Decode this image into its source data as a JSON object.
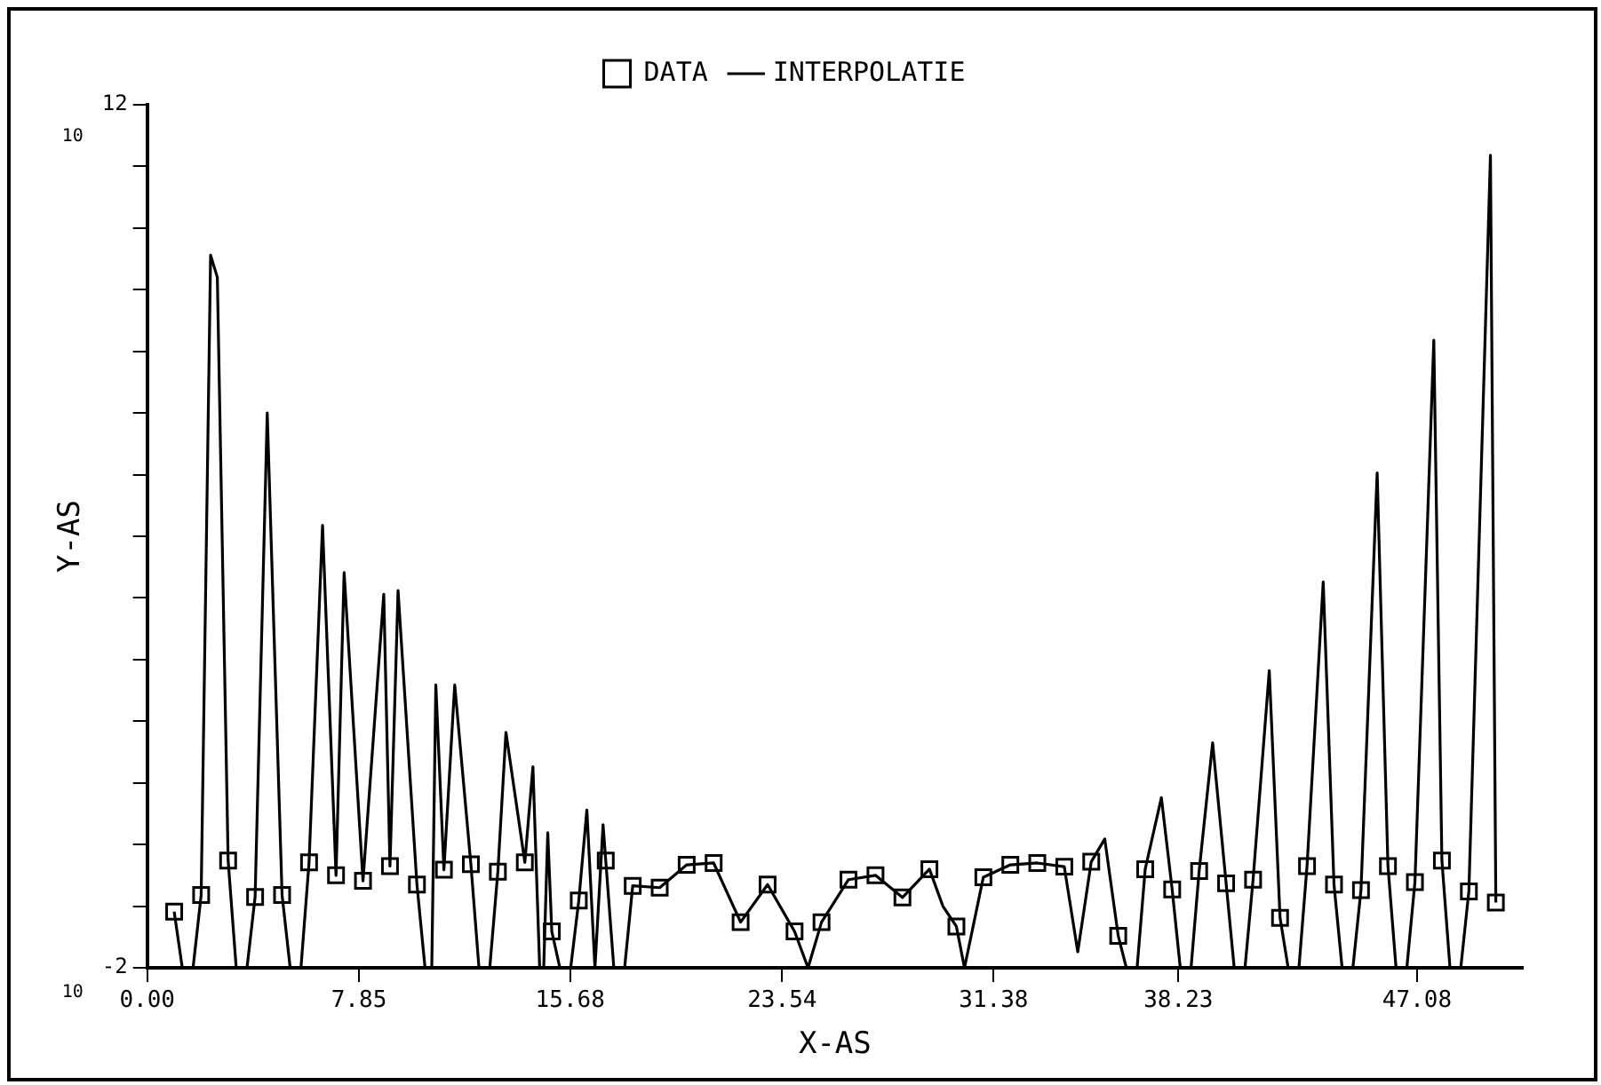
{
  "chart_data": {
    "type": "line",
    "xlabel": "X-AS",
    "ylabel": "Y-AS",
    "xlim": [
      0,
      51
    ],
    "ylim": [
      -2,
      12
    ],
    "xticks": [
      {
        "value": 0,
        "label": "0.00"
      },
      7.85,
      15.68,
      23.54,
      31.38,
      38.23,
      47.08
    ],
    "yticks": [
      -2,
      {
        "value": -1,
        "label": null
      },
      {
        "value": 0,
        "label": null
      },
      {
        "value": 1,
        "label": null
      },
      {
        "value": 2,
        "label": null
      },
      {
        "value": 3,
        "label": null
      },
      {
        "value": 4,
        "label": null
      },
      {
        "value": 5,
        "label": null
      },
      {
        "value": 6,
        "label": null
      },
      {
        "value": 7,
        "label": null
      },
      {
        "value": 8,
        "label": null
      },
      {
        "value": 9,
        "label": null
      },
      {
        "value": 10,
        "label": null
      },
      {
        "value": 11,
        "label": null
      },
      12
    ],
    "annotations": [
      "10",
      "10"
    ],
    "grid": false,
    "legend": "top",
    "series": [
      {
        "name": "DATA",
        "type": "scatter",
        "color": "#000000",
        "marker": "square",
        "x": [
          1,
          2,
          3,
          4,
          5,
          6,
          7,
          8,
          9,
          10,
          11,
          12,
          13,
          14,
          15,
          16,
          17,
          18,
          19,
          20,
          21,
          22,
          23,
          24,
          25,
          26,
          27,
          28,
          29,
          30,
          31,
          32,
          33,
          34,
          35,
          36,
          37,
          38,
          39,
          40,
          41,
          42,
          43,
          44,
          45,
          46,
          47,
          48,
          49,
          50
        ],
        "values": [
          -1.09,
          -0.82,
          -0.26,
          -0.85,
          -0.82,
          -0.29,
          -0.5,
          -0.59,
          -0.35,
          -0.65,
          -0.41,
          -0.32,
          -0.44,
          -0.29,
          -1.41,
          -0.91,
          -0.26,
          -0.67,
          -0.7,
          -0.33,
          -0.3,
          -1.26,
          -0.65,
          -1.41,
          -1.26,
          -0.57,
          -0.5,
          -0.86,
          -0.4,
          -1.33,
          -0.53,
          -0.33,
          -0.3,
          -0.36,
          -0.28,
          -1.48,
          -0.4,
          -0.73,
          -0.43,
          -0.63,
          -0.57,
          -1.19,
          -0.35,
          -0.65,
          -0.74,
          -0.35,
          -0.61,
          -0.26,
          -0.76,
          -0.94
        ]
      },
      {
        "name": "INTERPOLATIE",
        "type": "line",
        "color": "#000000",
        "marker": "none",
        "line_style": "solid",
        "x": [
          1,
          1.3,
          1.5,
          1.7,
          2,
          2.35,
          2.6,
          3,
          3.3,
          3.5,
          3.7,
          4,
          4.45,
          5,
          5.3,
          5.5,
          5.7,
          6,
          6.5,
          7,
          7.3,
          8,
          8.77,
          9,
          9.3,
          10,
          10.3,
          10.5,
          10.55,
          10.7,
          11,
          11.4,
          12,
          12.3,
          12.5,
          12.7,
          13,
          13.3,
          14,
          14.3,
          14.55,
          14.62,
          14.7,
          14.85,
          15,
          15.3,
          15.5,
          15.7,
          16,
          16.3,
          16.6,
          16.9,
          17,
          17.3,
          17.5,
          17.7,
          18,
          19,
          20,
          21,
          22,
          23,
          24,
          24.5,
          25,
          26,
          27,
          28,
          29,
          29.5,
          30,
          30.3,
          31,
          32,
          33,
          34,
          34.5,
          35,
          35.5,
          36,
          36.3,
          36.5,
          36.7,
          37,
          37.6,
          38,
          38.3,
          38.5,
          38.7,
          39,
          39.5,
          40,
          40.3,
          40.5,
          40.7,
          41,
          41.6,
          42,
          42.3,
          42.5,
          42.7,
          43,
          43.6,
          44,
          44.3,
          44.5,
          44.7,
          45,
          45.6,
          46,
          46.3,
          46.5,
          46.7,
          47,
          47.7,
          48,
          48.3,
          48.5,
          48.7,
          49,
          49.8,
          50
        ],
        "values": [
          -1.09,
          -2,
          null,
          -2,
          -0.82,
          9.56,
          9.2,
          -0.26,
          -2,
          null,
          -2,
          -0.85,
          7.0,
          -0.82,
          -2,
          null,
          -2,
          -0.29,
          5.18,
          -0.5,
          4.41,
          -0.59,
          4.06,
          -0.35,
          4.12,
          -0.65,
          -2,
          null,
          -2,
          2.59,
          -0.41,
          2.59,
          -0.32,
          -2,
          null,
          -2,
          -0.44,
          1.82,
          -0.29,
          1.26,
          -2,
          null,
          -2,
          0.19,
          -1.41,
          -2,
          null,
          -2,
          -0.91,
          0.56,
          -2,
          0.32,
          -0.26,
          -2,
          null,
          -2,
          -0.67,
          -0.7,
          -0.33,
          -0.3,
          -1.26,
          -0.65,
          -1.41,
          -2,
          -1.26,
          -0.57,
          -0.5,
          -0.86,
          -0.4,
          -1.0,
          -1.33,
          -2,
          -0.53,
          -0.33,
          -0.3,
          -0.36,
          -1.74,
          -0.28,
          0.09,
          -1.48,
          -2,
          null,
          -2,
          -0.4,
          0.76,
          -0.73,
          -2,
          null,
          -2,
          -0.43,
          1.65,
          -0.63,
          -2,
          null,
          -2,
          -0.57,
          2.82,
          -1.19,
          -2,
          null,
          -2,
          -0.35,
          4.26,
          -0.65,
          -2,
          null,
          -2,
          -0.74,
          6.03,
          -0.35,
          -2,
          null,
          -2,
          -0.61,
          8.18,
          -0.26,
          -2,
          null,
          -2,
          -0.76,
          11.18,
          -0.94
        ]
      }
    ]
  }
}
